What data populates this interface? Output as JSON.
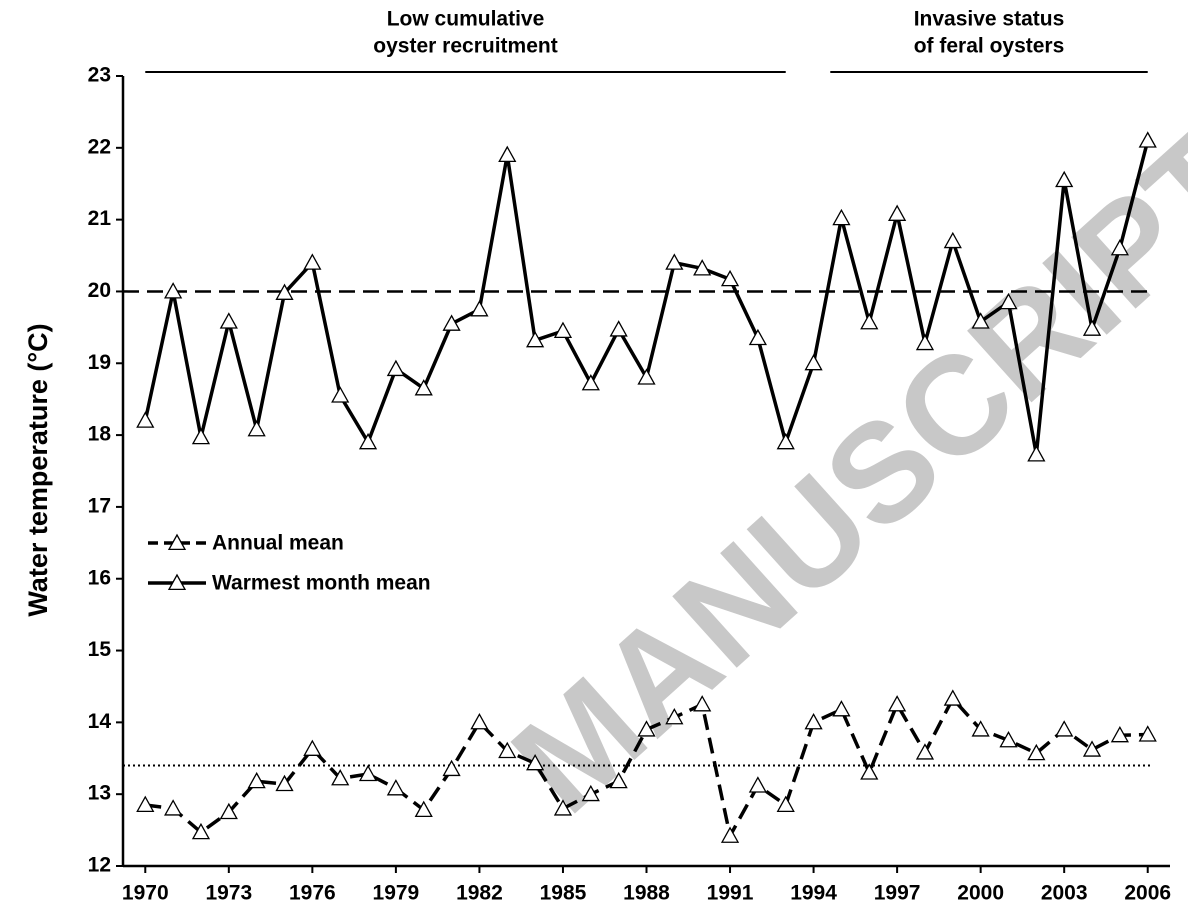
{
  "chart_data": {
    "type": "line",
    "ylabel": "Water temperature (°C)",
    "x": [
      1970,
      1971,
      1972,
      1973,
      1974,
      1975,
      1976,
      1977,
      1978,
      1979,
      1980,
      1981,
      1982,
      1983,
      1984,
      1985,
      1986,
      1987,
      1988,
      1989,
      1990,
      1991,
      1992,
      1993,
      1994,
      1995,
      1996,
      1997,
      1998,
      1999,
      2000,
      2001,
      2002,
      2003,
      2004,
      2005,
      2006
    ],
    "series": [
      {
        "name": "Annual mean",
        "color": "#000000",
        "line_style": "dashed",
        "values": [
          12.85,
          12.8,
          12.47,
          12.75,
          13.18,
          13.14,
          13.63,
          13.22,
          13.28,
          13.08,
          12.78,
          13.35,
          14.0,
          13.6,
          13.43,
          12.8,
          13.0,
          13.18,
          13.9,
          14.07,
          14.25,
          12.42,
          13.12,
          12.85,
          14.0,
          14.18,
          13.3,
          14.25,
          13.58,
          14.33,
          13.9,
          13.75,
          13.57,
          13.9,
          13.62,
          13.82,
          13.83
        ]
      },
      {
        "name": "Warmest month mean",
        "color": "#000000",
        "line_style": "solid",
        "values": [
          18.2,
          20.0,
          17.97,
          19.58,
          18.08,
          19.98,
          20.4,
          18.55,
          17.9,
          18.92,
          18.65,
          19.55,
          19.75,
          21.9,
          19.32,
          19.45,
          18.72,
          19.47,
          18.8,
          20.4,
          20.32,
          20.17,
          19.35,
          17.9,
          19.0,
          21.02,
          19.57,
          21.08,
          19.28,
          20.7,
          19.58,
          19.85,
          17.73,
          21.55,
          19.48,
          20.6,
          22.1
        ]
      }
    ],
    "reference_lines": [
      {
        "value": 20,
        "style": "dashed"
      },
      {
        "value": 13.4,
        "style": "dotted"
      }
    ],
    "periods": [
      {
        "label": [
          "Low cumulative",
          "oyster recruitment"
        ],
        "start": 1970,
        "end": 1993
      },
      {
        "label": [
          "Invasive status",
          "of feral oysters"
        ],
        "start": 1994.6,
        "end": 2006
      }
    ],
    "xlim": [
      1969.2,
      2006.8
    ],
    "xticks": [
      1970,
      1973,
      1976,
      1979,
      1982,
      1985,
      1988,
      1991,
      1994,
      1997,
      2000,
      2003,
      2006
    ],
    "ylim": [
      12,
      23
    ],
    "yticks": [
      12,
      13,
      14,
      15,
      16,
      17,
      18,
      19,
      20,
      21,
      22,
      23
    ],
    "legend": "center left",
    "watermark": "MANUSCRIPT"
  }
}
